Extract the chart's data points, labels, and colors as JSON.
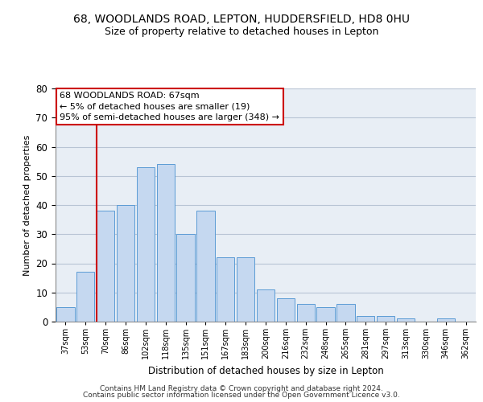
{
  "title": "68, WOODLANDS ROAD, LEPTON, HUDDERSFIELD, HD8 0HU",
  "subtitle": "Size of property relative to detached houses in Lepton",
  "xlabel": "Distribution of detached houses by size in Lepton",
  "ylabel": "Number of detached properties",
  "bar_labels": [
    "37sqm",
    "53sqm",
    "70sqm",
    "86sqm",
    "102sqm",
    "118sqm",
    "135sqm",
    "151sqm",
    "167sqm",
    "183sqm",
    "200sqm",
    "216sqm",
    "232sqm",
    "248sqm",
    "265sqm",
    "281sqm",
    "297sqm",
    "313sqm",
    "330sqm",
    "346sqm",
    "362sqm"
  ],
  "bar_values": [
    5,
    17,
    38,
    40,
    53,
    54,
    30,
    38,
    22,
    22,
    11,
    8,
    6,
    5,
    6,
    2,
    2,
    1,
    0,
    1,
    0
  ],
  "bar_color": "#c5d8f0",
  "bar_edgecolor": "#5b9bd5",
  "annotation_line1": "68 WOODLANDS ROAD: 67sqm",
  "annotation_line2": "← 5% of detached houses are smaller (19)",
  "annotation_line3": "95% of semi-detached houses are larger (348) →",
  "red_line_index": 2,
  "red_line_color": "#cc0000",
  "annotation_box_color": "#ffffff",
  "annotation_box_edgecolor": "#cc0000",
  "ylim": [
    0,
    80
  ],
  "footer_line1": "Contains HM Land Registry data © Crown copyright and database right 2024.",
  "footer_line2": "Contains public sector information licensed under the Open Government Licence v3.0.",
  "background_color": "#ffffff",
  "plot_bg_color": "#e8eef5",
  "grid_color": "#b8c4d4",
  "title_fontsize": 10,
  "subtitle_fontsize": 9,
  "annotation_fontsize": 8,
  "xlabel_fontsize": 8.5,
  "ylabel_fontsize": 8
}
